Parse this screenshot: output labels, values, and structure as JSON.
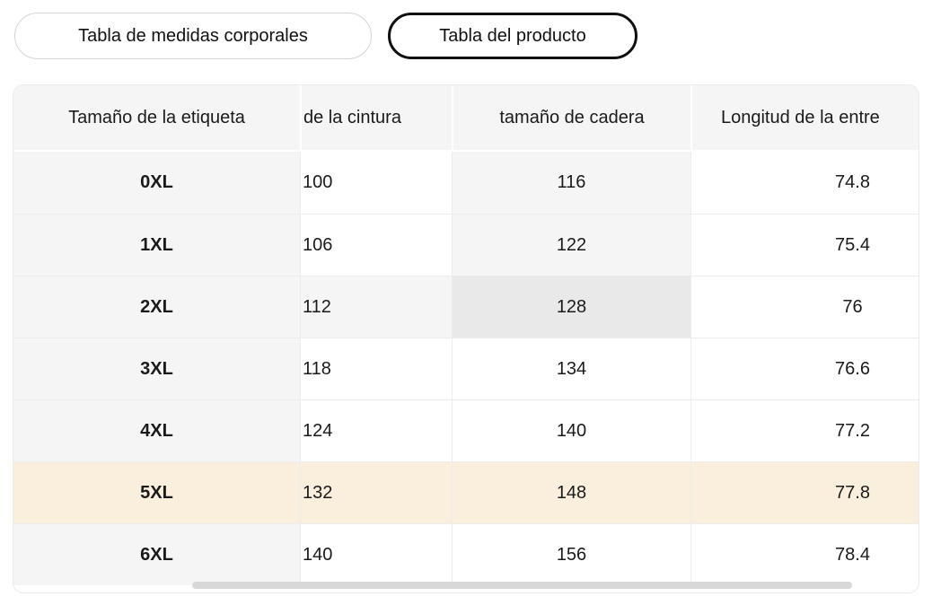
{
  "tabs": {
    "body_measurements": {
      "label": "Tabla de medidas corporales",
      "selected": false
    },
    "product": {
      "label": "Tabla del producto",
      "selected": true
    }
  },
  "size_table": {
    "columns": {
      "label": "Tamaño de la etiqueta",
      "waist": "de la cintura",
      "hip": "tamaño de cadera",
      "inseam": "Longitud de la entre"
    },
    "rows": [
      {
        "size": "0XL",
        "waist": "100",
        "hip": "116",
        "inseam": "74.8"
      },
      {
        "size": "1XL",
        "waist": "106",
        "hip": "122",
        "inseam": "75.4"
      },
      {
        "size": "2XL",
        "waist": "112",
        "hip": "128",
        "inseam": "76"
      },
      {
        "size": "3XL",
        "waist": "118",
        "hip": "134",
        "inseam": "76.6"
      },
      {
        "size": "4XL",
        "waist": "124",
        "hip": "140",
        "inseam": "77.2"
      },
      {
        "size": "5XL",
        "waist": "132",
        "hip": "148",
        "inseam": "77.8"
      },
      {
        "size": "6XL",
        "waist": "140",
        "hip": "156",
        "inseam": "78.4"
      }
    ],
    "highlighted_row": "5XL",
    "hovered_cell": {
      "row": "2XL",
      "column": "hip"
    }
  },
  "colors": {
    "header_bg": "#f5f5f5",
    "sticky_column_bg": "#f5f5f5",
    "crosshair_bg": "#f5f5f5",
    "hovered_cell_bg": "#e9e9e9",
    "highlight_row_bg": "#faeedd",
    "selected_tab_border": "#101010",
    "unselected_tab_border": "#d4d4d4",
    "scroll_thumb": "#d8d8d8"
  }
}
